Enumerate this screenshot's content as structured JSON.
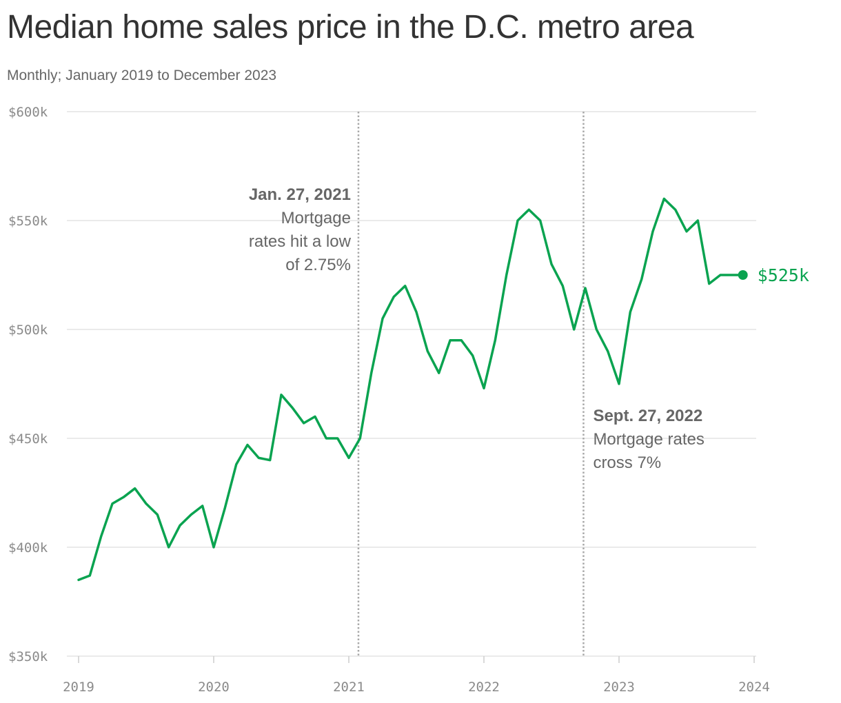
{
  "title": "Median home sales price in the D.C. metro area",
  "subtitle": "Monthly; January 2019 to December 2023",
  "colors": {
    "line": "#0aa350",
    "grid": "#e3e3e3",
    "ref_line": "#a8a8a8"
  },
  "chart_data": {
    "type": "line",
    "x_start": "2019-01",
    "x_end": "2023-12",
    "ylim": [
      350,
      600
    ],
    "y_ticks": [
      {
        "value": 600,
        "label": "$600k"
      },
      {
        "value": 550,
        "label": "$550k"
      },
      {
        "value": 500,
        "label": "$500k"
      },
      {
        "value": 450,
        "label": "$450k"
      },
      {
        "value": 400,
        "label": "$400k"
      },
      {
        "value": 350,
        "label": "$350k"
      }
    ],
    "x_ticks": [
      "2019",
      "2020",
      "2021",
      "2022",
      "2023",
      "2024"
    ],
    "values": [
      385,
      387,
      405,
      420,
      423,
      427,
      420,
      415,
      400,
      410,
      415,
      419,
      400,
      418,
      438,
      447,
      441,
      440,
      470,
      464,
      457,
      460,
      450,
      450,
      441,
      450,
      480,
      505,
      515,
      520,
      508,
      490,
      480,
      495,
      495,
      488,
      473,
      495,
      525,
      550,
      555,
      550,
      530,
      520,
      500,
      519,
      500,
      490,
      475,
      508,
      523,
      545,
      560,
      555,
      545,
      550,
      521,
      525,
      525,
      525
    ],
    "end_label": "$525k",
    "annotations": [
      {
        "date": "2021-01-27",
        "title": "Jan. 27, 2021",
        "lines": [
          "Mortgage",
          "rates hit a low",
          "of 2.75%"
        ]
      },
      {
        "date": "2022-09-27",
        "title": "Sept. 27, 2022",
        "lines": [
          "Mortgage rates",
          "cross 7%"
        ]
      }
    ]
  }
}
